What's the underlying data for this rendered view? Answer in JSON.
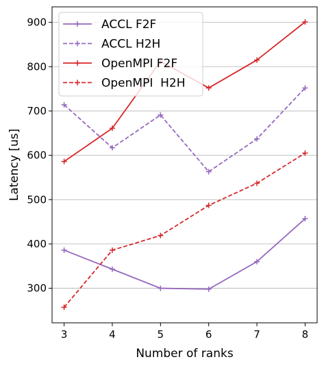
{
  "chart_data": {
    "type": "line",
    "xlabel": "Number of ranks",
    "ylabel": "Latency [us]",
    "x": [
      3,
      4,
      5,
      6,
      7,
      8
    ],
    "xlim": [
      2.75,
      8.25
    ],
    "ylim": [
      222,
      935
    ],
    "yticks": [
      300,
      400,
      500,
      600,
      700,
      800,
      900
    ],
    "grid": "horizontal",
    "legend_position": "top-left",
    "series": [
      {
        "name": "ACCL F2F",
        "color": "#9467bd",
        "dash": "solid",
        "values": [
          386,
          343,
          300,
          298,
          360,
          457
        ]
      },
      {
        "name": "ACCL H2H",
        "color": "#9467bd",
        "dash": "dashed",
        "values": [
          714,
          617,
          691,
          563,
          637,
          752
        ]
      },
      {
        "name": "OpenMPI F2F",
        "color": "#d62728",
        "dash": "solid",
        "values": [
          586,
          661,
          812,
          752,
          815,
          901
        ]
      },
      {
        "name": "OpenMPI  H2H",
        "color": "#d62728",
        "dash": "dashed",
        "values": [
          257,
          386,
          419,
          487,
          537,
          605
        ]
      }
    ]
  }
}
